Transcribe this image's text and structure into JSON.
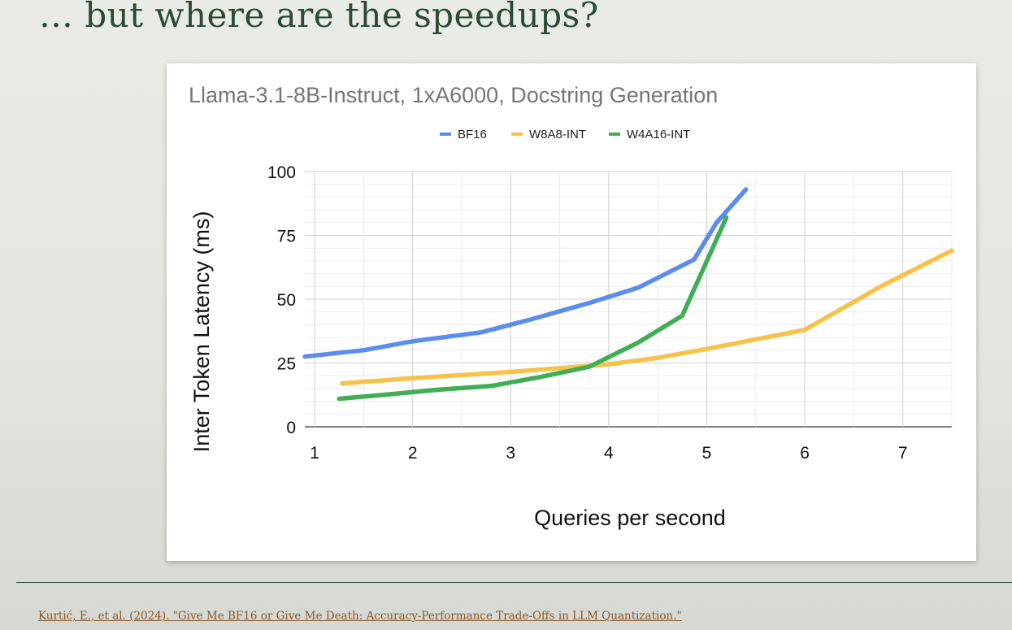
{
  "slide": {
    "title": "… but where are the speedups?",
    "citation": "Kurtić, E., et al. (2024). \"Give Me BF16 or Give Me Death: Accuracy-Performance Trade-Offs in LLM Quantization.\""
  },
  "chart_data": {
    "type": "line",
    "title": "Llama-3.1-8B-Instruct, 1xA6000, Docstring Generation",
    "xlabel": "Queries per second",
    "ylabel": "Inter Token Latency (ms)",
    "xlim": [
      0.9,
      7.5
    ],
    "ylim": [
      0,
      100
    ],
    "xticks": [
      1,
      2,
      3,
      4,
      5,
      6,
      7
    ],
    "yticks": [
      0,
      25,
      50,
      75,
      100
    ],
    "grid": true,
    "legend": "top-center",
    "series": [
      {
        "name": "BF16",
        "color": "#5b8def",
        "points": [
          [
            0.9,
            27.5
          ],
          [
            1.5,
            30
          ],
          [
            2.0,
            33.5
          ],
          [
            2.7,
            37
          ],
          [
            3.2,
            42
          ],
          [
            3.8,
            48.5
          ],
          [
            4.3,
            54.5
          ],
          [
            4.87,
            65.5
          ],
          [
            5.1,
            80
          ],
          [
            5.4,
            93
          ]
        ]
      },
      {
        "name": "W8A8-INT",
        "color": "#f6c24a",
        "points": [
          [
            1.28,
            17
          ],
          [
            2.0,
            19
          ],
          [
            3.0,
            21.5
          ],
          [
            4.0,
            24.5
          ],
          [
            4.5,
            27
          ],
          [
            5.0,
            30.5
          ],
          [
            6.0,
            38
          ],
          [
            6.8,
            55.5
          ],
          [
            7.5,
            69
          ]
        ]
      },
      {
        "name": "W4A16-INT",
        "color": "#3fae55",
        "points": [
          [
            1.25,
            11
          ],
          [
            1.7,
            12.5
          ],
          [
            2.25,
            14.5
          ],
          [
            2.8,
            16
          ],
          [
            3.3,
            19.5
          ],
          [
            3.8,
            23.5
          ],
          [
            4.3,
            33
          ],
          [
            4.75,
            43.5
          ],
          [
            5.2,
            82
          ]
        ]
      }
    ]
  }
}
